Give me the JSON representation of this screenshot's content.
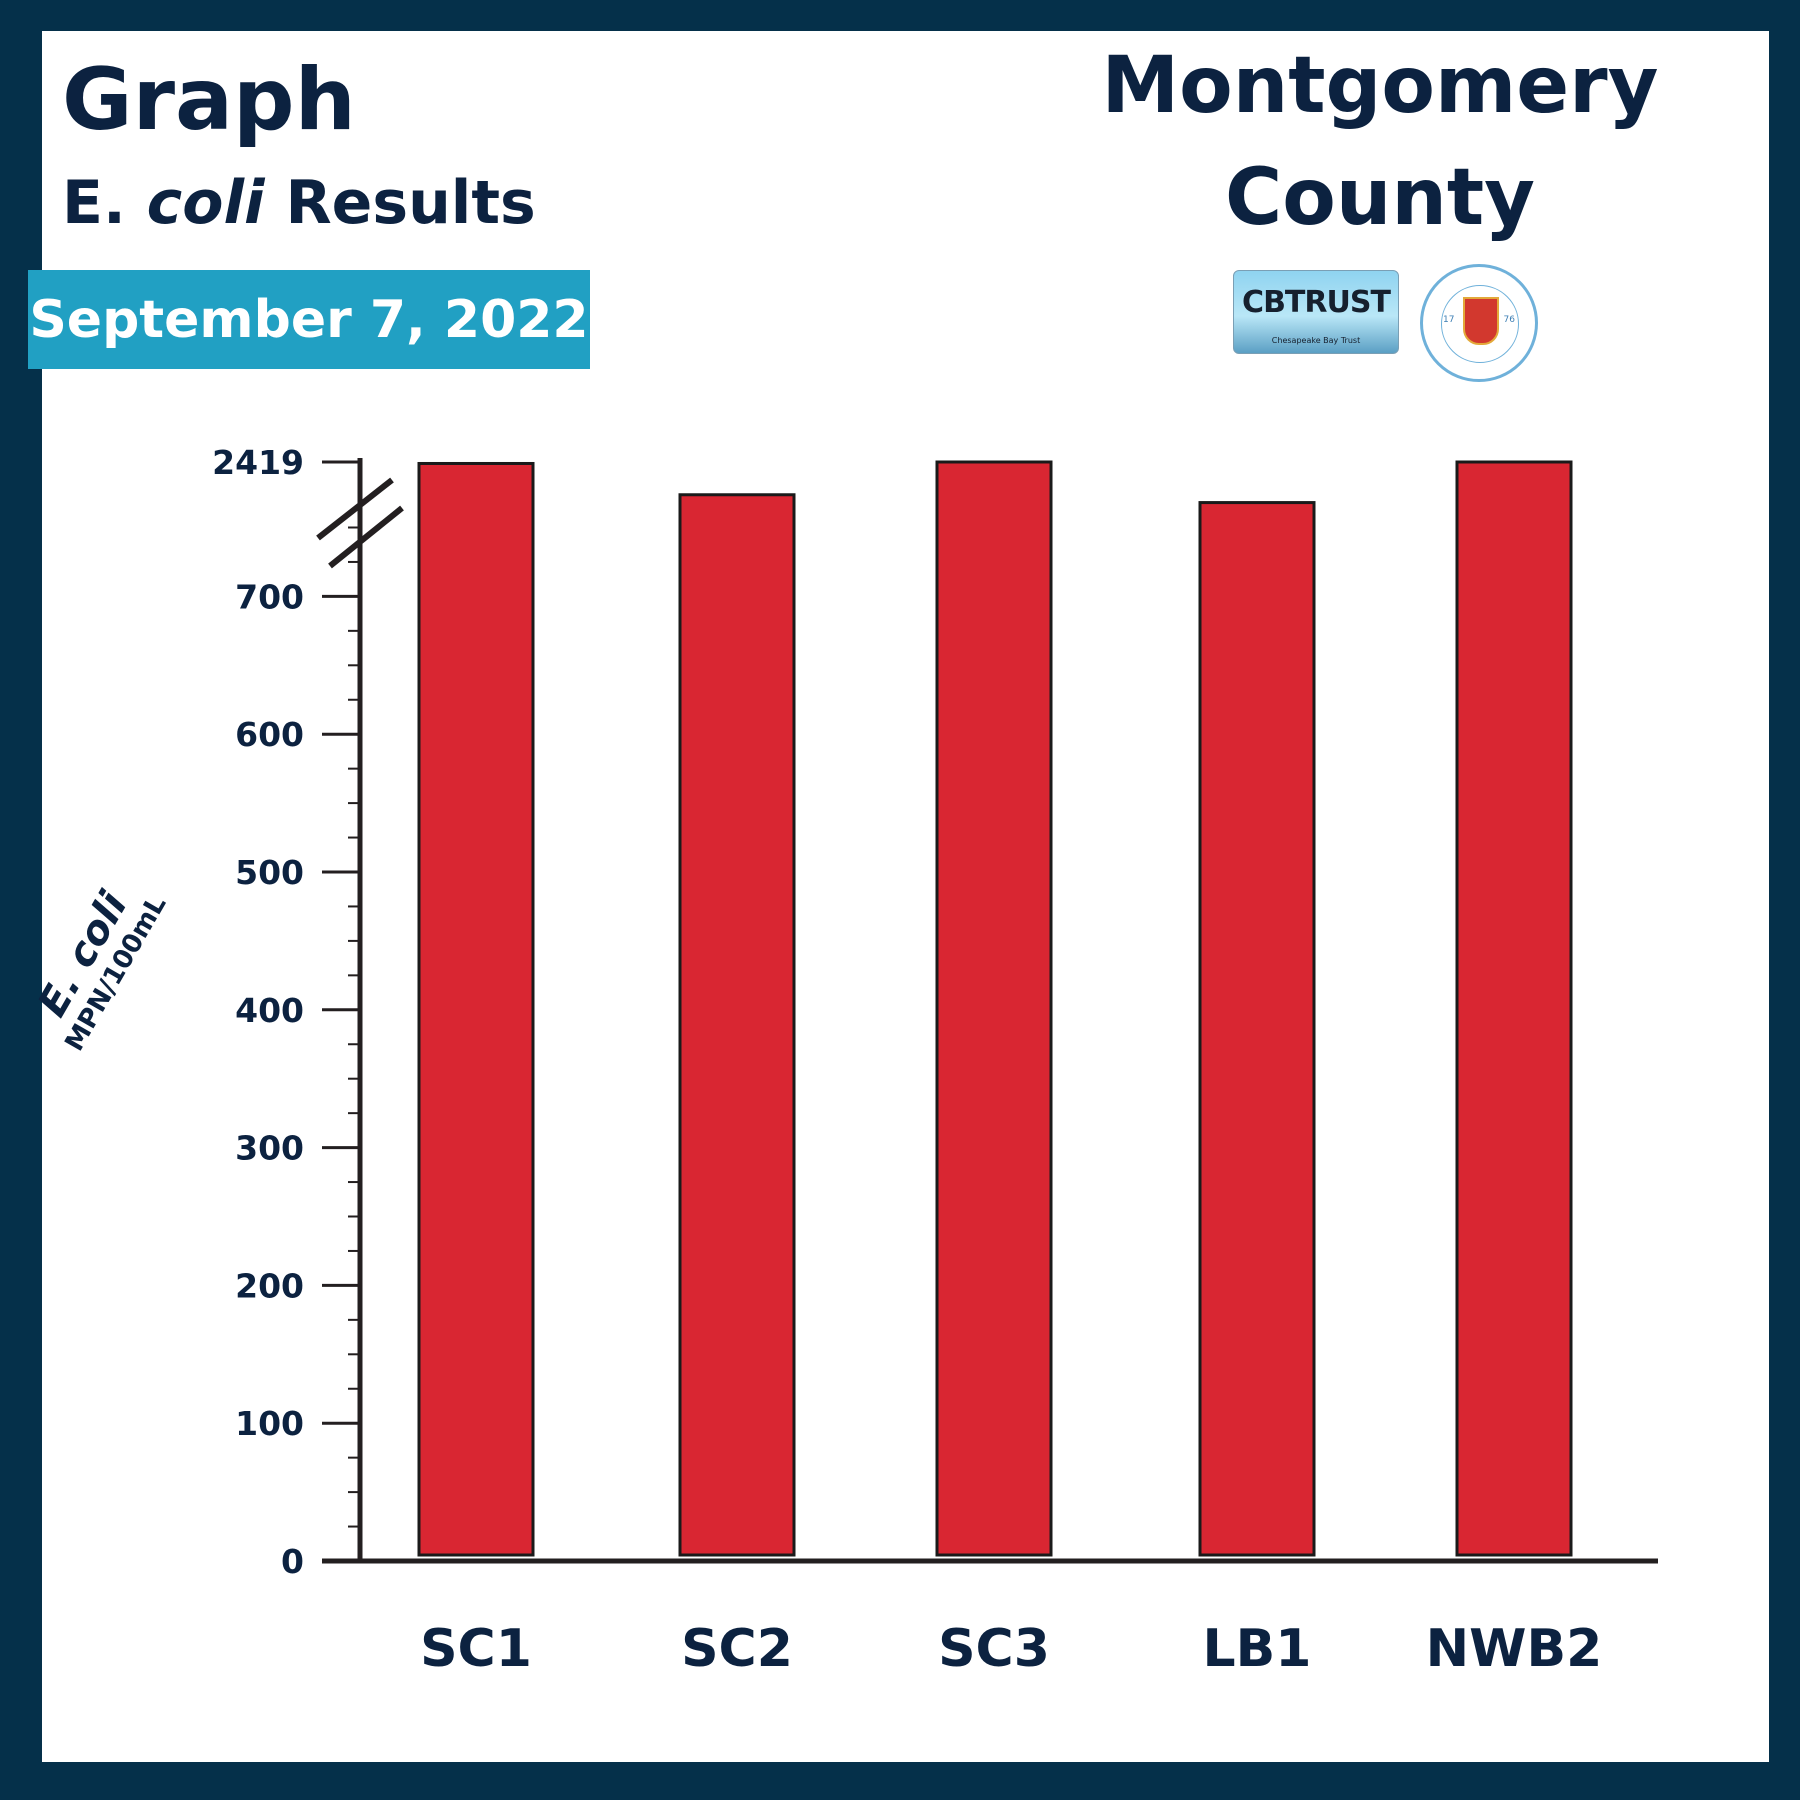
{
  "header": {
    "title": "Graph",
    "subtitle_prefix": "E. ",
    "subtitle_italic": "coli",
    "subtitle_suffix": " Results",
    "date": "September 7, 2022",
    "county_line1": "Montgomery",
    "county_line2": "County"
  },
  "logos": {
    "cbtrust": "CBTRUST",
    "cbtrust_sub": "Chesapeake Bay Trust",
    "seal_year_left": "17",
    "seal_year_right": "76"
  },
  "colors": {
    "frame": "#05304a",
    "text": "#0c2240",
    "badge": "#21a0c3",
    "bar": "#d92632"
  },
  "chart_data": {
    "type": "bar",
    "categories": [
      "SC1",
      "SC2",
      "SC3",
      "LB1",
      "NWB2"
    ],
    "values": [
      2400,
      2000,
      2419,
      1900,
      2419
    ],
    "ylabel": "E. coli",
    "yunit": "MPN/100mL",
    "yticks": [
      0,
      100,
      200,
      300,
      400,
      500,
      600,
      700,
      2419
    ],
    "ylim": [
      0,
      2419
    ],
    "axis_break": "between 700 and 2419",
    "grid": false,
    "legend": "none"
  }
}
